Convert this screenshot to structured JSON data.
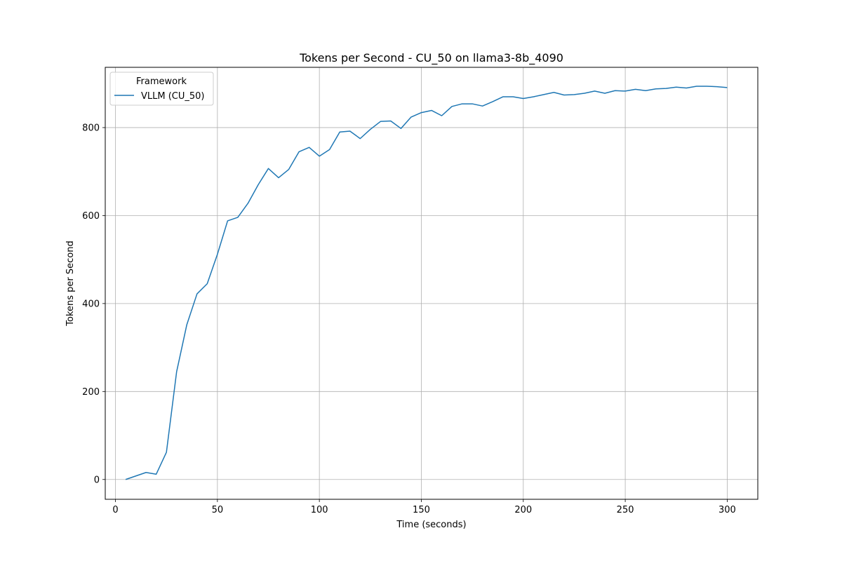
{
  "chart_data": {
    "type": "line",
    "title": "Tokens per Second - CU_50 on llama3-8b_4090",
    "xlabel": "Time (seconds)",
    "ylabel": "Tokens per Second",
    "xlim": [
      -5,
      315
    ],
    "ylim": [
      -45,
      937
    ],
    "xticks": [
      0,
      50,
      100,
      150,
      200,
      250,
      300
    ],
    "yticks": [
      0,
      200,
      400,
      600,
      800
    ],
    "grid": true,
    "legend": {
      "title": "Framework",
      "placement": "top-left"
    },
    "series": [
      {
        "name": "VLLM (CU_50)",
        "color": "#1f77b4",
        "x": [
          5,
          10,
          15,
          20,
          25,
          30,
          35,
          40,
          45,
          50,
          55,
          60,
          65,
          70,
          75,
          80,
          85,
          90,
          95,
          100,
          105,
          110,
          115,
          120,
          125,
          130,
          135,
          140,
          145,
          150,
          155,
          160,
          165,
          170,
          175,
          180,
          185,
          190,
          195,
          200,
          205,
          210,
          215,
          220,
          225,
          230,
          235,
          240,
          245,
          250,
          255,
          260,
          265,
          270,
          275,
          280,
          285,
          290,
          295,
          300
        ],
        "y": [
          0,
          8,
          16,
          12,
          62,
          245,
          352,
          422,
          445,
          512,
          588,
          596,
          628,
          670,
          707,
          686,
          705,
          745,
          755,
          735,
          750,
          790,
          792,
          775,
          796,
          814,
          815,
          798,
          824,
          834,
          839,
          827,
          848,
          854,
          854,
          849,
          859,
          870,
          870,
          866,
          870,
          875,
          880,
          874,
          875,
          878,
          883,
          878,
          884,
          883,
          887,
          884,
          888,
          889,
          892,
          890,
          894,
          894,
          893,
          891
        ]
      }
    ]
  }
}
